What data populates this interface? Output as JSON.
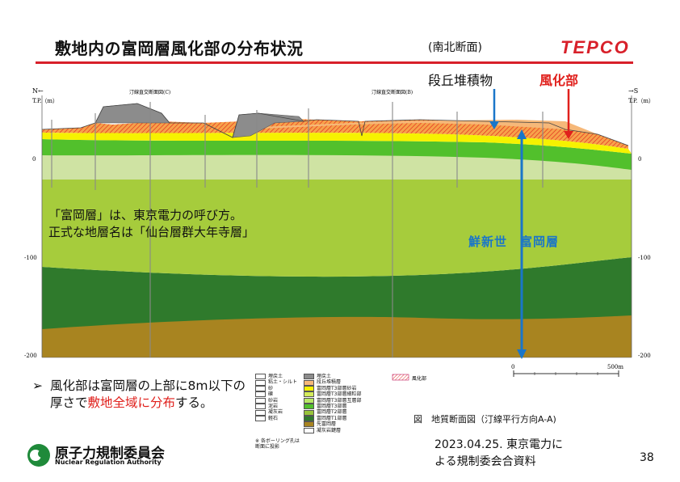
{
  "header": {
    "title": "敷地内の富岡層風化部の分布状況",
    "subtitle": "(南北断面)",
    "logo_text": "TEPCO",
    "brand_color": "#d8202a"
  },
  "section": {
    "north_label": "N←",
    "south_label": "→S",
    "left_axis_unit": "T.P.（m）",
    "right_axis_unit": "T.P.（m）",
    "elevation_ticks": [
      "0",
      "-100",
      "-200"
    ],
    "cross_section_left": "汀線直交断面図(C)",
    "cross_section_mid": "汀線直交断面図(B)",
    "scale_start": "0",
    "scale_end": "500m"
  },
  "callouts": {
    "terrace_deposit": "段丘堆積物",
    "weathered_zone": "風化部",
    "formation_name": "鮮新世　富岡層",
    "note_line1": "「富岡層」は、東京電力の呼び方。",
    "note_line2": "正式な地層名は「仙台層群大年寺層」",
    "callout_blue": "#1a76c9",
    "callout_red": "#e0201c"
  },
  "bullet": {
    "mark": "➢",
    "text_before": "風化部は富岡層の上部に8m以下の厚さで",
    "highlight": "敷地全域に分布",
    "text_after": "する。"
  },
  "legend": {
    "left_column": [
      {
        "label": "埋戻土",
        "color": "#ffffff"
      },
      {
        "label": "粘土・シルト",
        "color": "#ffffff"
      },
      {
        "label": "砂",
        "color": "#ffffff"
      },
      {
        "label": "礫",
        "color": "#ffffff"
      },
      {
        "label": "砂岩",
        "color": "#ffffff"
      },
      {
        "label": "泥岩",
        "color": "#ffffff"
      },
      {
        "label": "凝灰岩",
        "color": "#ffffff"
      },
      {
        "label": "軽石",
        "color": "#ffffff"
      }
    ],
    "right_column": [
      {
        "label": "埋戻土",
        "color": "#8c8c8c"
      },
      {
        "label": "段丘堆積層",
        "color": "#f6b879"
      },
      {
        "label": "富岡層T3部層砂岩",
        "color": "#f6f200"
      },
      {
        "label": "富岡層T3部層細粒部",
        "color": "#d3ec5b"
      },
      {
        "label": "富岡層T3部層互層部",
        "color": "#b9e866"
      },
      {
        "label": "富岡層T3部層",
        "color": "#52c02c"
      },
      {
        "label": "富岡層T2部層",
        "color": "#98c43a"
      },
      {
        "label": "富岡層T1部層",
        "color": "#2f7a2c"
      },
      {
        "label": "先富岡層",
        "color": "#a88420"
      },
      {
        "label": "凝灰岩鍵層",
        "color": "#ffffff"
      }
    ],
    "weathered_label": "風化部",
    "boring_note": "※ 各ボーリング孔は断面に投影"
  },
  "figure_caption": "図　地質断面図（汀線平行方向A-A)",
  "source_line1": "2023.04.25. 東京電力に",
  "source_line2": "よる規制委会合資料",
  "page_number": "38",
  "authority": {
    "name_jp": "原子力規制委員会",
    "name_en": "Nuclear Regulation Authority"
  }
}
